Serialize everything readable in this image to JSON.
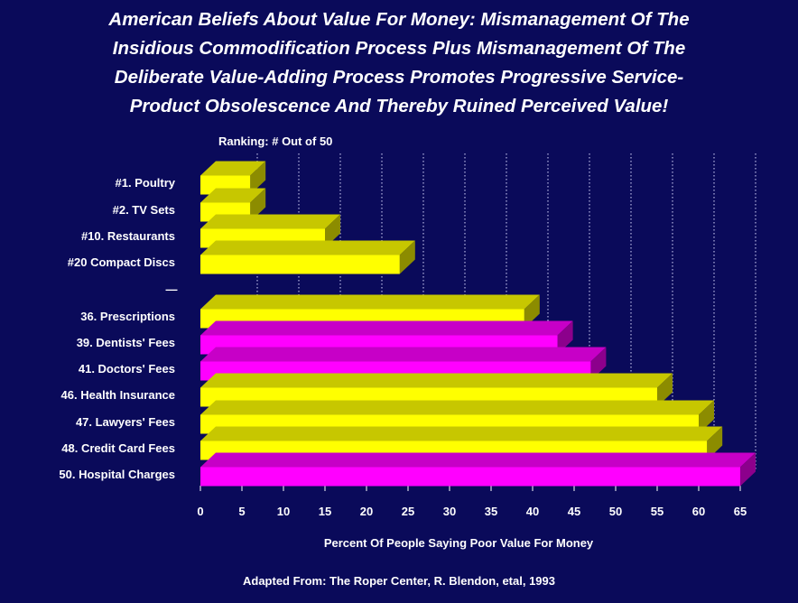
{
  "title_lines": [
    "American Beliefs About Value For Money: Mismanagement Of  The",
    "Insidious Commodification Process Plus Mismanagement Of The",
    "Deliberate Value-Adding Process Promotes Progressive Service-",
    "Product Obsolescence And Thereby Ruined Perceived Value!"
  ],
  "source": "Adapted From: The Roper Center, R. Blendon, etal, 1993",
  "colors": {
    "background": "#0a0a5a",
    "yellow": "#ffff00",
    "magenta": "#ff00ff",
    "text": "#ffffff"
  },
  "chart_data": {
    "type": "bar",
    "orientation": "horizontal",
    "subtitle": "Ranking: # Out of 50",
    "xlabel": "Percent Of People Saying Poor Value For Money",
    "ylabel": "",
    "xlim": [
      0,
      65
    ],
    "xticks": [
      "0",
      "5",
      "10",
      "15",
      "20",
      "25",
      "30",
      "35",
      "40",
      "45",
      "50",
      "55",
      "60",
      "65"
    ],
    "grid": "vertical dotted",
    "separator_label": "—",
    "categories": [
      "#1. Poultry",
      "#2. TV Sets",
      "#10. Restaurants",
      "#20 Compact Discs",
      "36. Prescriptions",
      "39. Dentists' Fees",
      "41. Doctors' Fees",
      "46. Health Insurance",
      "47. Lawyers' Fees",
      "48. Credit Card Fees",
      "50. Hospital Charges"
    ],
    "values": [
      6,
      6,
      15,
      24,
      39,
      43,
      47,
      55,
      60,
      61,
      65
    ],
    "bar_colors": [
      "yellow",
      "yellow",
      "yellow",
      "yellow",
      "yellow",
      "magenta",
      "magenta",
      "yellow",
      "yellow",
      "yellow",
      "magenta"
    ]
  }
}
